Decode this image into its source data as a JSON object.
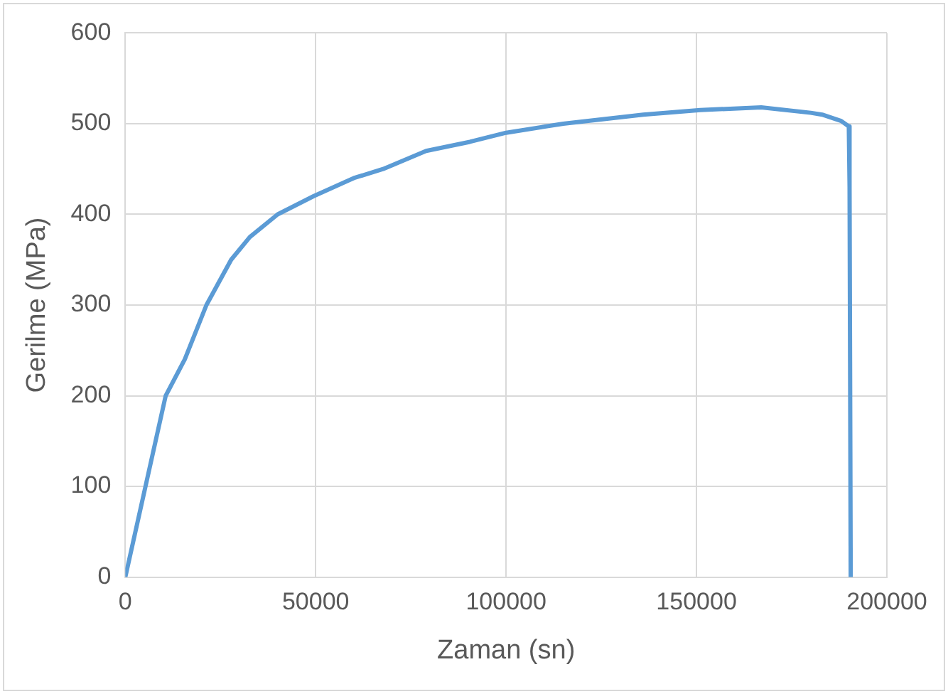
{
  "chart_data": {
    "type": "line",
    "xlabel": "Zaman (sn)",
    "ylabel": "Gerilme (MPa)",
    "x": [
      0,
      5300,
      10600,
      15600,
      21300,
      27800,
      32700,
      40000,
      49400,
      60000,
      67700,
      79000,
      90500,
      100000,
      115000,
      136000,
      151000,
      167000,
      180000,
      183000,
      188000,
      190000,
      190200,
      190500
    ],
    "series": [
      {
        "color": "#5b9bd5",
        "values": [
          0,
          100,
          200,
          240,
          300,
          350,
          375,
          400,
          420,
          440,
          450,
          470,
          480,
          490,
          500,
          510,
          515,
          518,
          512,
          510,
          503,
          497,
          430,
          0
        ]
      }
    ],
    "xlim": [
      0,
      200000
    ],
    "xticks": [
      0,
      50000,
      100000,
      150000,
      200000
    ],
    "ylim": [
      0,
      600
    ],
    "yticks": [
      0,
      100,
      200,
      300,
      400,
      500,
      600
    ],
    "grid": true,
    "legend": false,
    "marker": "none",
    "line_style": "solid"
  }
}
